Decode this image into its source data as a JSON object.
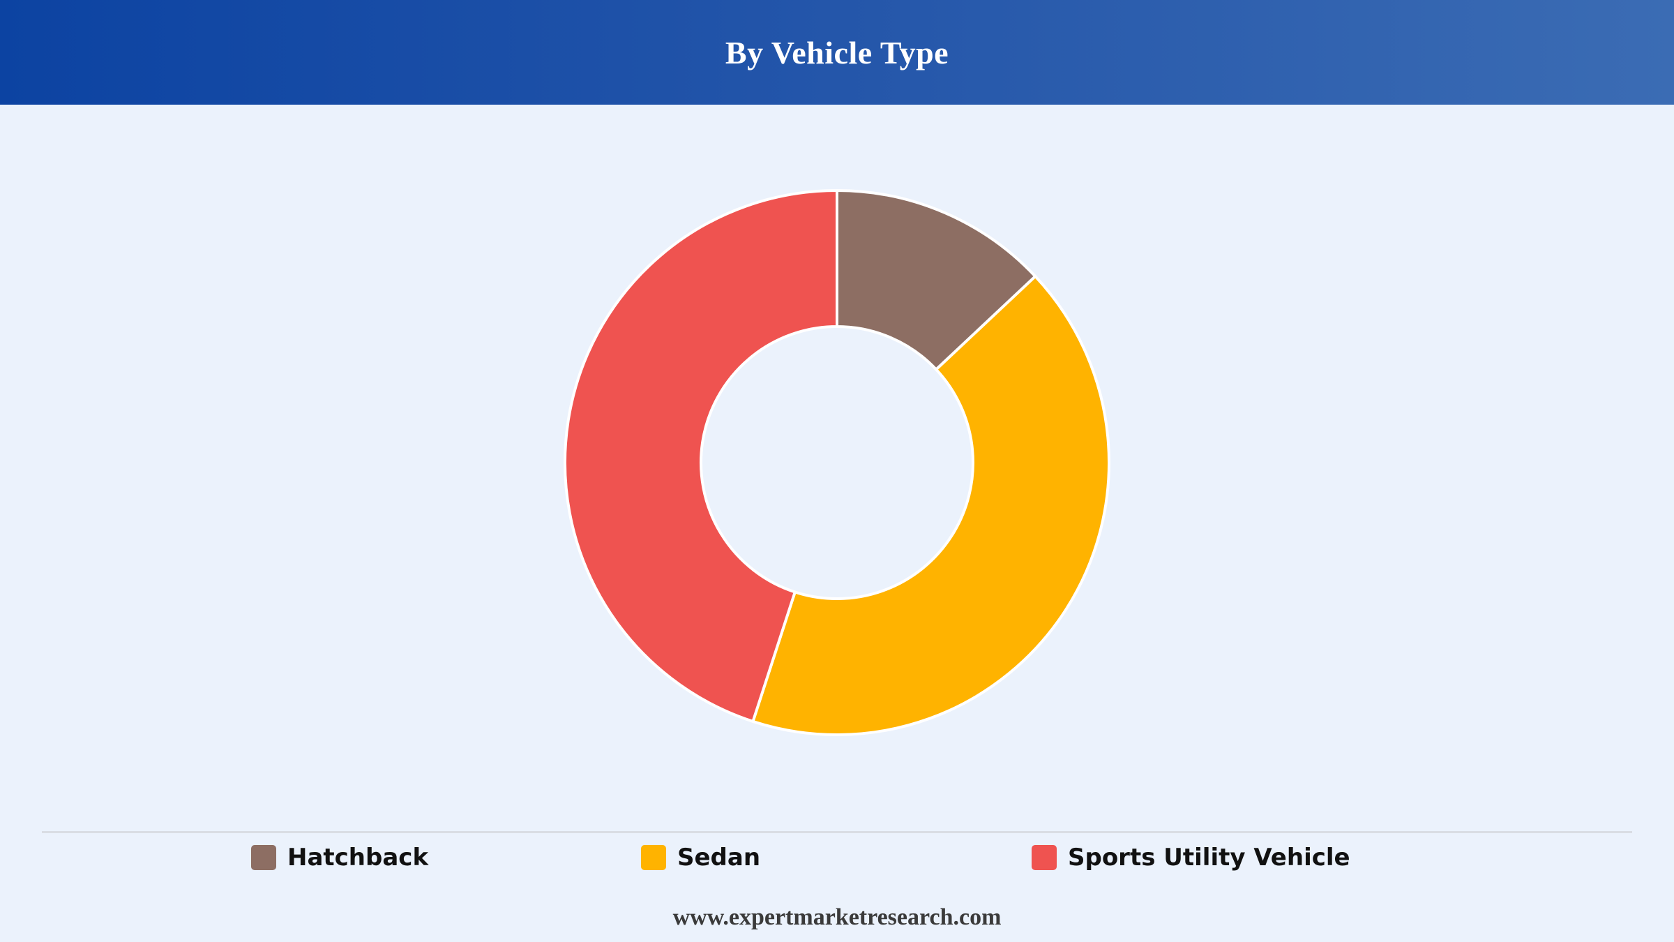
{
  "header": {
    "title": "By Vehicle Type"
  },
  "colors": {
    "hatchback": "#8d6e63",
    "sedan": "#ffb300",
    "suv": "#ef5350",
    "slice_border": "#ffffff"
  },
  "chart_data": {
    "type": "pie",
    "variant": "donut",
    "categories": [
      "Hatchback",
      "Sedan",
      "Sports Utility Vehicle"
    ],
    "values": [
      13,
      42,
      45
    ],
    "unit": "percent (estimated share)",
    "legend_position": "bottom"
  },
  "legend": {
    "items": [
      {
        "label": "Hatchback",
        "color": "#8d6e63"
      },
      {
        "label": "Sedan",
        "color": "#ffb300"
      },
      {
        "label": "Sports Utility Vehicle",
        "color": "#ef5350"
      }
    ]
  },
  "footer": {
    "url": "www.expertmarketresearch.com"
  }
}
